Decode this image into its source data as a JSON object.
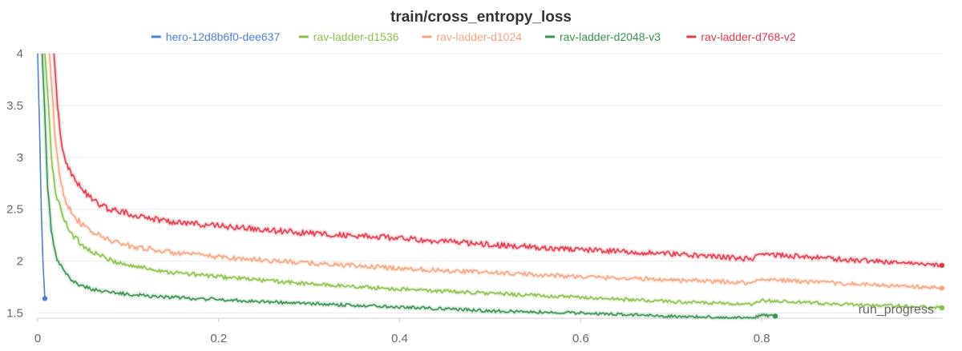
{
  "chart_data": {
    "type": "line",
    "title": "train/cross_entropy_loss",
    "xlabel": "run_progress",
    "ylabel": "",
    "xlim": [
      0,
      1.0
    ],
    "ylim": [
      1.45,
      4.0
    ],
    "x_ticks": [
      "0",
      "0.2",
      "0.4",
      "0.6",
      "0.8"
    ],
    "y_ticks": [
      "1.5",
      "2",
      "2.5",
      "3",
      "3.5",
      "4"
    ],
    "grid": true,
    "legend_position": "top-center",
    "series": [
      {
        "name": "hero-12d8b6f0-dee637",
        "color": "#4e7fd8",
        "x": [
          0.0,
          0.002,
          0.004,
          0.006,
          0.008
        ],
        "y": [
          4.0,
          3.3,
          2.5,
          1.95,
          1.64
        ]
      },
      {
        "name": "rav-ladder-d1536",
        "color": "#8cc04d",
        "x": [
          0.008,
          0.012,
          0.015,
          0.02,
          0.03,
          0.04,
          0.05,
          0.06,
          0.08,
          0.1,
          0.15,
          0.2,
          0.3,
          0.4,
          0.5,
          0.6,
          0.7,
          0.79,
          0.8,
          0.85,
          0.9,
          0.95,
          0.999
        ],
        "y": [
          4.0,
          3.5,
          3.0,
          2.65,
          2.38,
          2.24,
          2.15,
          2.09,
          2.01,
          1.96,
          1.89,
          1.85,
          1.78,
          1.73,
          1.69,
          1.65,
          1.61,
          1.58,
          1.62,
          1.6,
          1.58,
          1.57,
          1.55
        ]
      },
      {
        "name": "rav-ladder-d1024",
        "color": "#f4a582",
        "x": [
          0.013,
          0.016,
          0.02,
          0.025,
          0.03,
          0.04,
          0.05,
          0.06,
          0.08,
          0.1,
          0.15,
          0.2,
          0.3,
          0.4,
          0.5,
          0.6,
          0.7,
          0.79,
          0.8,
          0.85,
          0.9,
          0.95,
          0.999
        ],
        "y": [
          4.0,
          3.6,
          3.1,
          2.8,
          2.6,
          2.44,
          2.34,
          2.28,
          2.2,
          2.15,
          2.08,
          2.04,
          1.98,
          1.93,
          1.89,
          1.85,
          1.82,
          1.79,
          1.83,
          1.8,
          1.78,
          1.76,
          1.74
        ]
      },
      {
        "name": "rav-ladder-d2048-v3",
        "color": "#3a9150",
        "x": [
          0.005,
          0.008,
          0.011,
          0.015,
          0.02,
          0.03,
          0.04,
          0.05,
          0.06,
          0.08,
          0.1,
          0.15,
          0.2,
          0.3,
          0.4,
          0.5,
          0.6,
          0.7,
          0.79,
          0.8,
          0.815
        ],
        "y": [
          4.0,
          3.4,
          2.7,
          2.3,
          2.05,
          1.88,
          1.8,
          1.76,
          1.73,
          1.7,
          1.68,
          1.65,
          1.63,
          1.59,
          1.56,
          1.52,
          1.5,
          1.47,
          1.45,
          1.48,
          1.47
        ]
      },
      {
        "name": "rav-ladder-d768-v2",
        "color": "#e8394d",
        "x": [
          0.018,
          0.022,
          0.026,
          0.03,
          0.035,
          0.04,
          0.05,
          0.06,
          0.07,
          0.08,
          0.1,
          0.12,
          0.15,
          0.2,
          0.25,
          0.3,
          0.4,
          0.5,
          0.6,
          0.7,
          0.79,
          0.8,
          0.85,
          0.9,
          0.95,
          0.999
        ],
        "y": [
          4.0,
          3.5,
          3.15,
          3.0,
          2.88,
          2.8,
          2.68,
          2.6,
          2.54,
          2.5,
          2.46,
          2.42,
          2.38,
          2.34,
          2.3,
          2.27,
          2.22,
          2.16,
          2.11,
          2.07,
          2.02,
          2.07,
          2.04,
          2.01,
          1.99,
          1.96
        ]
      }
    ]
  }
}
